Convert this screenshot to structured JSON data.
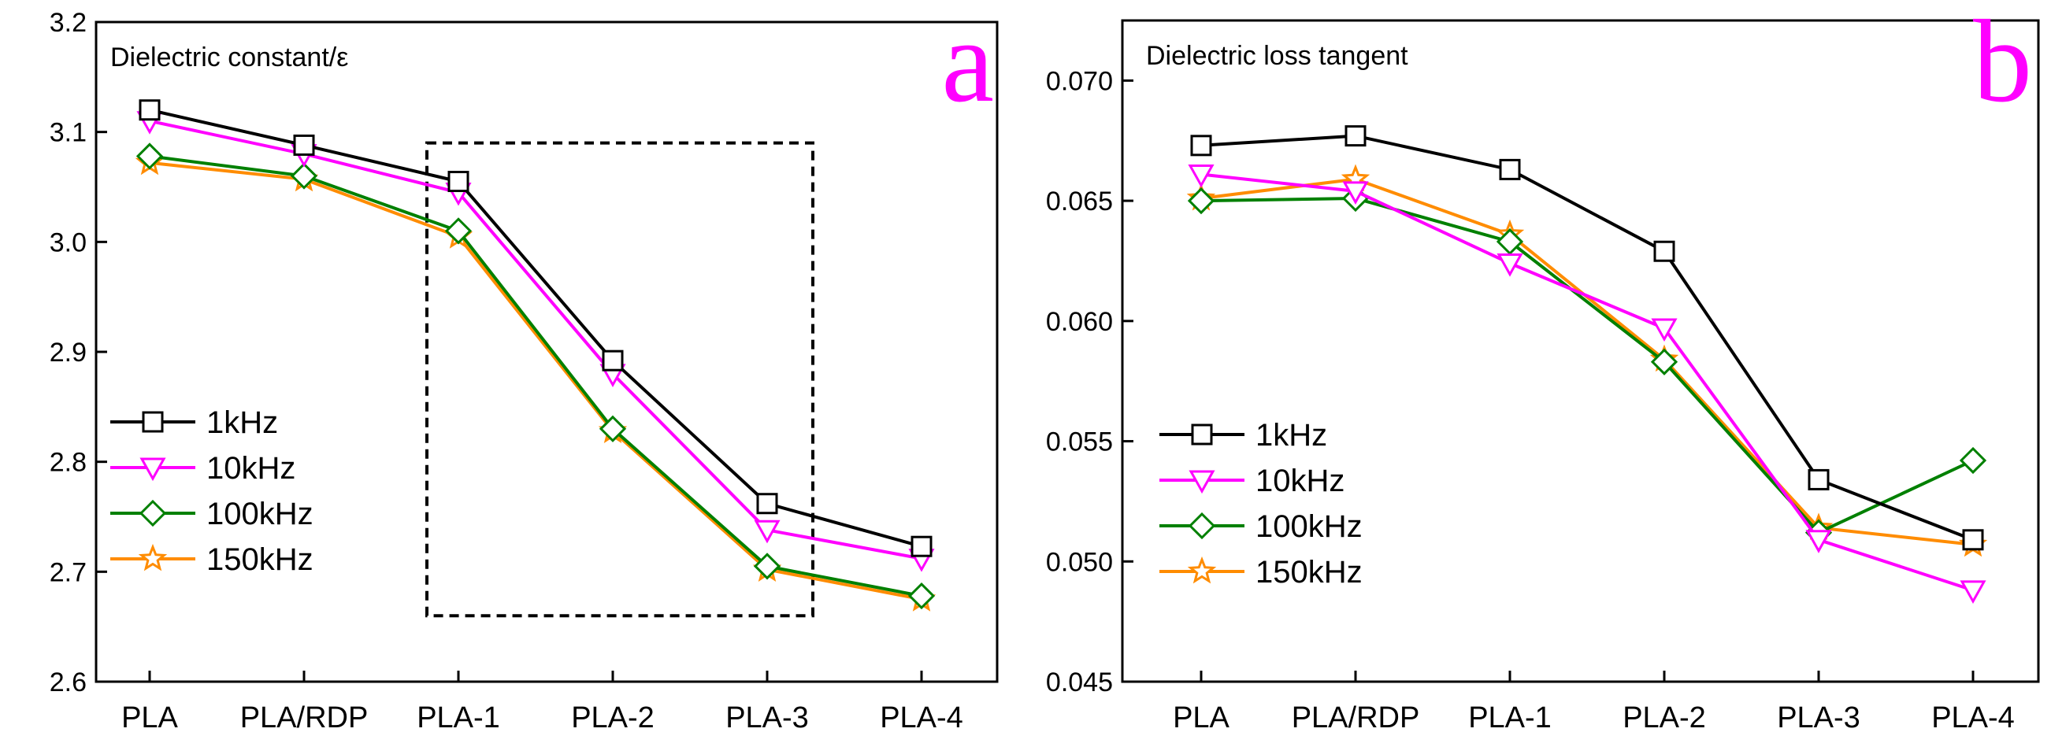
{
  "colors": {
    "series": [
      "#000000",
      "#ff00ff",
      "#008000",
      "#ff8c00"
    ],
    "panel_letter": "#ff00ff",
    "axis": "#000000"
  },
  "chart_data": [
    {
      "type": "line",
      "panel_letter": "a",
      "title": "Dielectric constant/ε",
      "xlabel": "",
      "ylabel": "",
      "categories": [
        "PLA",
        "PLA/RDP",
        "PLA-1",
        "PLA-2",
        "PLA-3",
        "PLA-4"
      ],
      "ylim": [
        2.6,
        3.2
      ],
      "yticks": [
        2.6,
        2.7,
        2.8,
        2.9,
        3.0,
        3.1,
        3.2
      ],
      "ytick_labels": [
        "2.6",
        "2.7",
        "2.8",
        "2.9",
        "3.0",
        "3.1",
        "3.2"
      ],
      "legend_position": "center-left",
      "highlight_box": {
        "category_from": "PLA-1",
        "category_to": "PLA-3",
        "y_from": 2.66,
        "y_to": 3.09,
        "style": "dashed"
      },
      "series": [
        {
          "name": "1kHz",
          "marker": "square",
          "values": [
            3.12,
            3.088,
            3.055,
            2.892,
            2.762,
            2.723
          ]
        },
        {
          "name": "10kHz",
          "marker": "triangle-down",
          "values": [
            3.11,
            3.08,
            3.045,
            2.88,
            2.738,
            2.712
          ]
        },
        {
          "name": "100kHz",
          "marker": "diamond",
          "values": [
            3.078,
            3.06,
            3.01,
            2.83,
            2.705,
            2.678
          ]
        },
        {
          "name": "150kHz",
          "marker": "star",
          "values": [
            3.072,
            3.057,
            3.005,
            2.828,
            2.702,
            2.675
          ]
        }
      ]
    },
    {
      "type": "line",
      "panel_letter": "b",
      "title": "Dielectric loss tangent",
      "xlabel": "",
      "ylabel": "",
      "categories": [
        "PLA",
        "PLA/RDP",
        "PLA-1",
        "PLA-2",
        "PLA-3",
        "PLA-4"
      ],
      "ylim": [
        0.045,
        0.0725
      ],
      "yticks": [
        0.045,
        0.05,
        0.055,
        0.06,
        0.065,
        0.07
      ],
      "ytick_labels": [
        "0.045",
        "0.050",
        "0.055",
        "0.060",
        "0.065",
        "0.070"
      ],
      "legend_position": "center-left",
      "series": [
        {
          "name": "1kHz",
          "marker": "square",
          "values": [
            0.0673,
            0.0677,
            0.0663,
            0.0629,
            0.0534,
            0.0509
          ]
        },
        {
          "name": "10kHz",
          "marker": "triangle-down",
          "values": [
            0.0661,
            0.0654,
            0.0624,
            0.0597,
            0.0509,
            0.0488
          ]
        },
        {
          "name": "100kHz",
          "marker": "diamond",
          "values": [
            0.065,
            0.0651,
            0.0633,
            0.0583,
            0.0512,
            0.0542
          ]
        },
        {
          "name": "150kHz",
          "marker": "star",
          "values": [
            0.0651,
            0.0659,
            0.0636,
            0.0584,
            0.0514,
            0.0507
          ]
        }
      ]
    }
  ]
}
